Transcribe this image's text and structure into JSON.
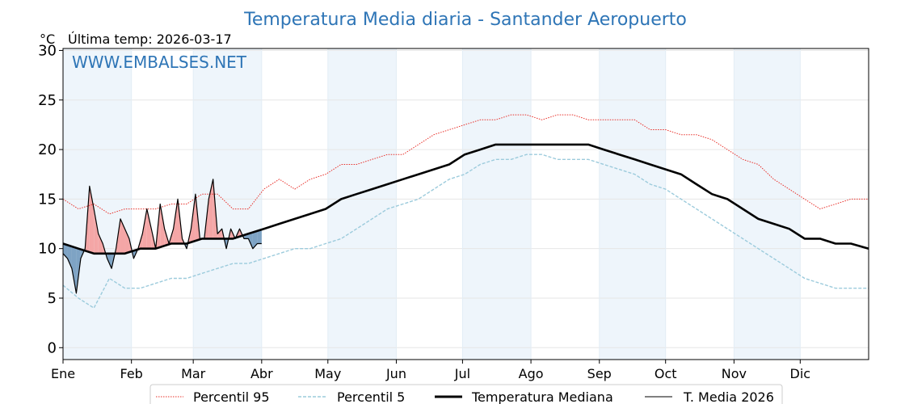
{
  "chart_data": {
    "type": "line",
    "title": "Temperatura Media diaria - Santander Aeropuerto",
    "y_unit": "°C",
    "last_temp_label": "Última temp: 2026-03-17",
    "watermark": "WWW.EMBALSES.NET",
    "xlabel": "",
    "ylabel": "",
    "x_domain": [
      1,
      366
    ],
    "ylim": [
      -1.2,
      30.2
    ],
    "yticks": [
      0,
      5,
      10,
      15,
      20,
      25,
      30
    ],
    "xticks": [
      {
        "label": "Ene",
        "day": 1
      },
      {
        "label": "Feb",
        "day": 32
      },
      {
        "label": "Mar",
        "day": 60
      },
      {
        "label": "Abr",
        "day": 91
      },
      {
        "label": "May",
        "day": 121
      },
      {
        "label": "Jun",
        "day": 152
      },
      {
        "label": "Jul",
        "day": 182
      },
      {
        "label": "Ago",
        "day": 213
      },
      {
        "label": "Sep",
        "day": 244
      },
      {
        "label": "Oct",
        "day": 274
      },
      {
        "label": "Nov",
        "day": 305
      },
      {
        "label": "Dic",
        "day": 335
      }
    ],
    "grid": true,
    "legend_position": "bottom",
    "colors": {
      "p95": "#e8302a",
      "p5": "#9ccbdc",
      "median": "#000000",
      "current": "#000000",
      "above_fill": "#f4a6a6",
      "below_fill": "#7ea3c4",
      "shade": "#eef5fb",
      "title": "#2e75b6"
    },
    "series": [
      {
        "name": "Percentil 95",
        "style": "dotted",
        "points": [
          [
            1,
            15
          ],
          [
            8,
            14
          ],
          [
            15,
            14.5
          ],
          [
            22,
            13.5
          ],
          [
            29,
            14
          ],
          [
            36,
            14
          ],
          [
            43,
            14
          ],
          [
            50,
            14.5
          ],
          [
            57,
            14.5
          ],
          [
            64,
            15.5
          ],
          [
            71,
            15.5
          ],
          [
            78,
            14
          ],
          [
            85,
            14
          ],
          [
            92,
            16
          ],
          [
            99,
            17
          ],
          [
            106,
            16
          ],
          [
            113,
            17
          ],
          [
            120,
            17.5
          ],
          [
            127,
            18.5
          ],
          [
            134,
            18.5
          ],
          [
            141,
            19
          ],
          [
            148,
            19.5
          ],
          [
            155,
            19.5
          ],
          [
            162,
            20.5
          ],
          [
            169,
            21.5
          ],
          [
            176,
            22
          ],
          [
            183,
            22.5
          ],
          [
            190,
            23
          ],
          [
            197,
            23
          ],
          [
            204,
            23.5
          ],
          [
            211,
            23.5
          ],
          [
            218,
            23
          ],
          [
            225,
            23.5
          ],
          [
            232,
            23.5
          ],
          [
            239,
            23
          ],
          [
            246,
            23
          ],
          [
            253,
            23
          ],
          [
            260,
            23
          ],
          [
            267,
            22
          ],
          [
            274,
            22
          ],
          [
            281,
            21.5
          ],
          [
            288,
            21.5
          ],
          [
            295,
            21
          ],
          [
            302,
            20
          ],
          [
            309,
            19
          ],
          [
            316,
            18.5
          ],
          [
            323,
            17
          ],
          [
            330,
            16
          ],
          [
            337,
            15
          ],
          [
            344,
            14
          ],
          [
            351,
            14.5
          ],
          [
            358,
            15
          ],
          [
            366,
            15
          ]
        ]
      },
      {
        "name": "Percentil 5",
        "style": "dashed",
        "points": [
          [
            1,
            6.3
          ],
          [
            8,
            5
          ],
          [
            15,
            4
          ],
          [
            22,
            7
          ],
          [
            29,
            6
          ],
          [
            36,
            6
          ],
          [
            43,
            6.5
          ],
          [
            50,
            7
          ],
          [
            57,
            7
          ],
          [
            64,
            7.5
          ],
          [
            71,
            8
          ],
          [
            78,
            8.5
          ],
          [
            85,
            8.5
          ],
          [
            92,
            9
          ],
          [
            99,
            9.5
          ],
          [
            106,
            10
          ],
          [
            113,
            10
          ],
          [
            120,
            10.5
          ],
          [
            127,
            11
          ],
          [
            134,
            12
          ],
          [
            141,
            13
          ],
          [
            148,
            14
          ],
          [
            155,
            14.5
          ],
          [
            162,
            15
          ],
          [
            169,
            16
          ],
          [
            176,
            17
          ],
          [
            183,
            17.5
          ],
          [
            190,
            18.5
          ],
          [
            197,
            19
          ],
          [
            204,
            19
          ],
          [
            211,
            19.5
          ],
          [
            218,
            19.5
          ],
          [
            225,
            19
          ],
          [
            232,
            19
          ],
          [
            239,
            19
          ],
          [
            246,
            18.5
          ],
          [
            253,
            18
          ],
          [
            260,
            17.5
          ],
          [
            267,
            16.5
          ],
          [
            274,
            16
          ],
          [
            281,
            15
          ],
          [
            288,
            14
          ],
          [
            295,
            13
          ],
          [
            302,
            12
          ],
          [
            309,
            11
          ],
          [
            316,
            10
          ],
          [
            323,
            9
          ],
          [
            330,
            8
          ],
          [
            337,
            7
          ],
          [
            344,
            6.5
          ],
          [
            351,
            6
          ],
          [
            358,
            6
          ],
          [
            366,
            6
          ]
        ]
      },
      {
        "name": "Temperatura Mediana",
        "style": "solid-thick",
        "points": [
          [
            1,
            10.5
          ],
          [
            8,
            10
          ],
          [
            15,
            9.5
          ],
          [
            22,
            9.5
          ],
          [
            29,
            9.5
          ],
          [
            36,
            10
          ],
          [
            43,
            10
          ],
          [
            50,
            10.5
          ],
          [
            57,
            10.5
          ],
          [
            64,
            11
          ],
          [
            71,
            11
          ],
          [
            78,
            11
          ],
          [
            85,
            11.5
          ],
          [
            92,
            12
          ],
          [
            99,
            12.5
          ],
          [
            106,
            13
          ],
          [
            113,
            13.5
          ],
          [
            120,
            14
          ],
          [
            127,
            15
          ],
          [
            134,
            15.5
          ],
          [
            141,
            16
          ],
          [
            148,
            16.5
          ],
          [
            155,
            17
          ],
          [
            162,
            17.5
          ],
          [
            169,
            18
          ],
          [
            176,
            18.5
          ],
          [
            183,
            19.5
          ],
          [
            190,
            20
          ],
          [
            197,
            20.5
          ],
          [
            204,
            20.5
          ],
          [
            211,
            20.5
          ],
          [
            218,
            20.5
          ],
          [
            225,
            20.5
          ],
          [
            232,
            20.5
          ],
          [
            239,
            20.5
          ],
          [
            246,
            20
          ],
          [
            253,
            19.5
          ],
          [
            260,
            19
          ],
          [
            267,
            18.5
          ],
          [
            274,
            18
          ],
          [
            281,
            17.5
          ],
          [
            288,
            16.5
          ],
          [
            295,
            15.5
          ],
          [
            302,
            15
          ],
          [
            309,
            14
          ],
          [
            316,
            13
          ],
          [
            323,
            12.5
          ],
          [
            330,
            12
          ],
          [
            337,
            11
          ],
          [
            344,
            11
          ],
          [
            351,
            10.5
          ],
          [
            358,
            10.5
          ],
          [
            366,
            10
          ]
        ]
      },
      {
        "name": "T. Media 2026",
        "style": "solid-thin",
        "points": [
          [
            1,
            9.5
          ],
          [
            3,
            9
          ],
          [
            5,
            8
          ],
          [
            7,
            5.5
          ],
          [
            9,
            9
          ],
          [
            11,
            10
          ],
          [
            13,
            16.3
          ],
          [
            15,
            14
          ],
          [
            17,
            11.5
          ],
          [
            19,
            10.5
          ],
          [
            21,
            9
          ],
          [
            23,
            8
          ],
          [
            25,
            10
          ],
          [
            27,
            13
          ],
          [
            29,
            12
          ],
          [
            31,
            11
          ],
          [
            33,
            9
          ],
          [
            35,
            10
          ],
          [
            37,
            11.5
          ],
          [
            39,
            14
          ],
          [
            41,
            12
          ],
          [
            43,
            10
          ],
          [
            45,
            14.5
          ],
          [
            47,
            12
          ],
          [
            49,
            10.5
          ],
          [
            51,
            12
          ],
          [
            53,
            15
          ],
          [
            55,
            11
          ],
          [
            57,
            10
          ],
          [
            59,
            12
          ],
          [
            61,
            15.5
          ],
          [
            63,
            11
          ],
          [
            65,
            11
          ],
          [
            67,
            15
          ],
          [
            69,
            17
          ],
          [
            71,
            11.5
          ],
          [
            73,
            12
          ],
          [
            75,
            10
          ],
          [
            77,
            12
          ],
          [
            79,
            11
          ],
          [
            81,
            12
          ],
          [
            83,
            11
          ],
          [
            85,
            11
          ],
          [
            87,
            10
          ],
          [
            89,
            10.5
          ],
          [
            91,
            10.5
          ]
        ]
      }
    ]
  }
}
